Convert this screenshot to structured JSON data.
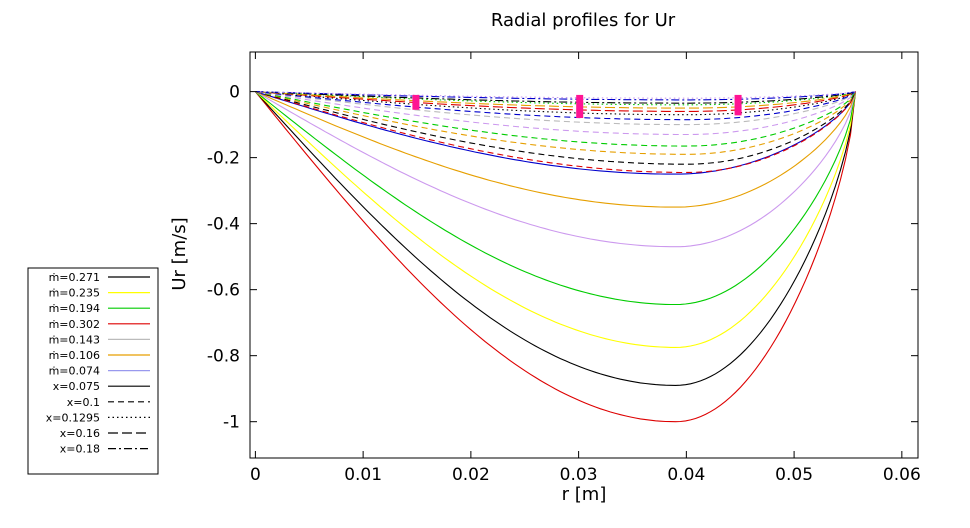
{
  "chart_data": {
    "type": "line",
    "title": "Radial profiles for Ur",
    "xlabel": "r [m]",
    "ylabel": "Ur [m/s]",
    "xlim": [
      -0.0005,
      0.0615
    ],
    "ylim": [
      -1.11,
      0.12
    ],
    "xticks": [
      0,
      0.01,
      0.02,
      0.03,
      0.04,
      0.05,
      0.06
    ],
    "xtick_labels": [
      "0",
      "0.01",
      "0.02",
      "0.03",
      "0.04",
      "0.05",
      "0.06"
    ],
    "yticks": [
      0,
      -0.2,
      -0.4,
      -0.6,
      -0.8,
      -1
    ],
    "ytick_labels": [
      "0",
      "-0.2",
      "-0.4",
      "-0.6",
      "-0.8",
      "-1"
    ],
    "grid": false,
    "legend_position": "outside-left",
    "legend_colors": [
      {
        "label": "ṁ=0.271",
        "color": "#000000"
      },
      {
        "label": "ṁ=0.235",
        "color": "#ffff00"
      },
      {
        "label": "ṁ=0.194",
        "color": "#00cc00"
      },
      {
        "label": "ṁ=0.302",
        "color": "#dd0000"
      },
      {
        "label": "ṁ=0.143",
        "color": "#bbbbbb"
      },
      {
        "label": "ṁ=0.106",
        "color": "#e69f00"
      },
      {
        "label": "ṁ=0.074",
        "color": "#9999ee"
      }
    ],
    "legend_styles": [
      {
        "label": "x=0.075",
        "dash": "solid"
      },
      {
        "label": "x=0.1",
        "dash": "dashed"
      },
      {
        "label": "x=0.1295",
        "dash": "dotted"
      },
      {
        "label": "x=0.16",
        "dash": "longdash"
      },
      {
        "label": "x=0.18",
        "dash": "dashdot"
      }
    ],
    "series": [
      {
        "color": "#dd0000",
        "dash": "solid",
        "min": -1.0,
        "rmin": 0.039
      },
      {
        "color": "#000000",
        "dash": "solid",
        "min": -0.89,
        "rmin": 0.039
      },
      {
        "color": "#ffff00",
        "dash": "solid",
        "min": -0.775,
        "rmin": 0.039
      },
      {
        "color": "#00cc00",
        "dash": "solid",
        "min": -0.645,
        "rmin": 0.039
      },
      {
        "color": "#cc99ee",
        "dash": "solid",
        "min": -0.47,
        "rmin": 0.039
      },
      {
        "color": "#e69f00",
        "dash": "solid",
        "min": -0.35,
        "rmin": 0.039
      },
      {
        "color": "#0000cc",
        "dash": "solid",
        "min": -0.25,
        "rmin": 0.039
      },
      {
        "color": "#dd0000",
        "dash": "dashed",
        "min": -0.245,
        "rmin": 0.04
      },
      {
        "color": "#000000",
        "dash": "dashed",
        "min": -0.22,
        "rmin": 0.04
      },
      {
        "color": "#e69f00",
        "dash": "dashed",
        "min": -0.19,
        "rmin": 0.04
      },
      {
        "color": "#00cc00",
        "dash": "dashed",
        "min": -0.165,
        "rmin": 0.04
      },
      {
        "color": "#cc99ee",
        "dash": "dashed",
        "min": -0.13,
        "rmin": 0.04
      },
      {
        "color": "#bbbbbb",
        "dash": "dashed",
        "min": -0.1,
        "rmin": 0.04
      },
      {
        "color": "#0000cc",
        "dash": "dashed",
        "min": -0.085,
        "rmin": 0.04
      },
      {
        "color": "#000000",
        "dash": "dotted",
        "min": -0.07,
        "rmin": 0.04
      },
      {
        "color": "#dd0000",
        "dash": "longdash",
        "min": -0.06,
        "rmin": 0.04
      },
      {
        "color": "#e69f00",
        "dash": "longdash",
        "min": -0.05,
        "rmin": 0.04
      },
      {
        "color": "#00cc00",
        "dash": "dotted",
        "min": -0.04,
        "rmin": 0.04
      },
      {
        "color": "#000000",
        "dash": "dashdot",
        "min": -0.035,
        "rmin": 0.04
      },
      {
        "color": "#0000cc",
        "dash": "dashdot",
        "min": -0.025,
        "rmin": 0.04
      },
      {
        "color": "#cc99ee",
        "dash": "dotted",
        "min": -0.02,
        "rmin": 0.04
      }
    ],
    "markers": [
      {
        "x": 0.0149,
        "y_top": -0.01,
        "y_bottom": -0.055,
        "color": "#ff1493"
      },
      {
        "x": 0.0301,
        "y_top": -0.01,
        "y_bottom": -0.08,
        "color": "#ff1493"
      },
      {
        "x": 0.0448,
        "y_top": -0.01,
        "y_bottom": -0.072,
        "color": "#ff1493"
      }
    ]
  }
}
